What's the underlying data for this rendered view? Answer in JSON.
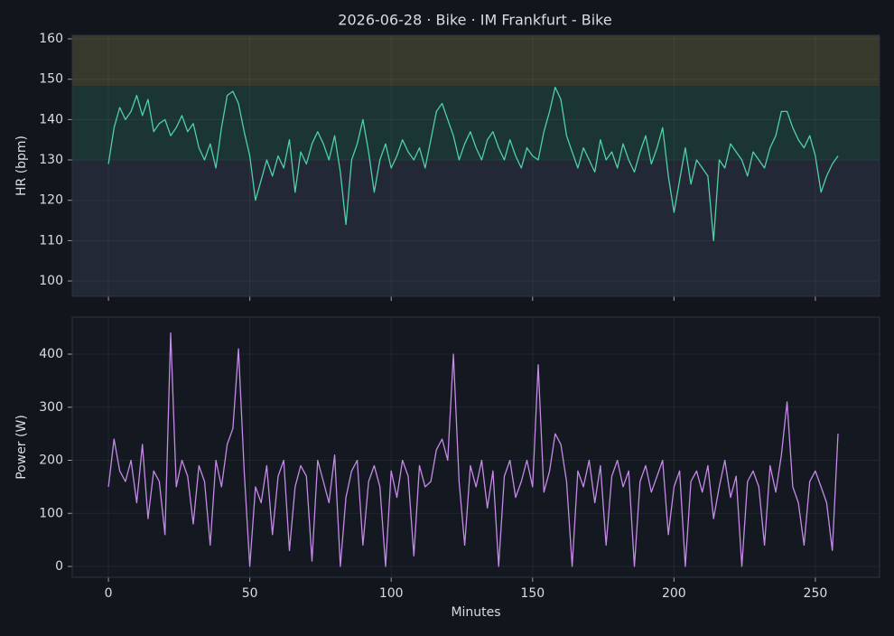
{
  "chart_data": [
    {
      "type": "line",
      "title": "2026-06-28 · Bike · IM Frankfurt - Bike",
      "y_label": "HR (bpm)",
      "color": "#4fd1a5",
      "grid": true,
      "xlim": [
        -12.8,
        272.7
      ],
      "xticks": [
        0,
        50,
        100,
        150,
        200,
        250
      ],
      "ylim": [
        96.2,
        160.9
      ],
      "yticks": [
        100,
        110,
        120,
        130,
        140,
        150,
        160
      ],
      "zones": [
        {
          "from": 148.3,
          "to": 160.9,
          "color": "#37392c"
        },
        {
          "from": 130,
          "to": 148.3,
          "color": "#1b3434"
        },
        {
          "from": 96.2,
          "to": 130,
          "color": "#232836"
        }
      ],
      "x": [
        0,
        2,
        4,
        6,
        8,
        10,
        12,
        14,
        16,
        18,
        20,
        22,
        24,
        26,
        28,
        30,
        32,
        34,
        36,
        38,
        40,
        42,
        44,
        46,
        48,
        50,
        52,
        54,
        56,
        58,
        60,
        62,
        64,
        66,
        68,
        70,
        72,
        74,
        76,
        78,
        80,
        82,
        84,
        86,
        88,
        90,
        92,
        94,
        96,
        98,
        100,
        102,
        104,
        106,
        108,
        110,
        112,
        114,
        116,
        118,
        120,
        122,
        124,
        126,
        128,
        130,
        132,
        134,
        136,
        138,
        140,
        142,
        144,
        146,
        148,
        150,
        152,
        154,
        156,
        158,
        160,
        162,
        164,
        166,
        168,
        170,
        172,
        174,
        176,
        178,
        180,
        182,
        184,
        186,
        188,
        190,
        192,
        194,
        196,
        198,
        200,
        202,
        204,
        206,
        208,
        210,
        212,
        214,
        216,
        218,
        220,
        222,
        224,
        226,
        228,
        230,
        232,
        234,
        236,
        238,
        240,
        242,
        244,
        246,
        248,
        250,
        252,
        254,
        256,
        258
      ],
      "values": [
        129,
        138,
        143,
        140,
        142,
        146,
        141,
        145,
        137,
        139,
        140,
        136,
        138,
        141,
        137,
        139,
        133,
        130,
        134,
        128,
        138,
        146,
        147,
        144,
        137,
        131,
        120,
        125,
        130,
        126,
        131,
        128,
        135,
        122,
        132,
        129,
        134,
        137,
        134,
        130,
        136,
        127,
        114,
        130,
        134,
        140,
        132,
        122,
        130,
        134,
        128,
        131,
        135,
        132,
        130,
        133,
        128,
        135,
        142,
        144,
        140,
        136,
        130,
        134,
        137,
        133,
        130,
        135,
        137,
        133,
        130,
        135,
        131,
        128,
        133,
        131,
        130,
        137,
        142,
        148,
        145,
        136,
        132,
        128,
        133,
        130,
        127,
        135,
        130,
        132,
        128,
        134,
        130,
        127,
        132,
        136,
        129,
        133,
        138,
        126,
        117,
        125,
        133,
        124,
        130,
        128,
        126,
        110,
        130,
        128,
        134,
        132,
        130,
        126,
        132,
        130,
        128,
        133,
        136,
        142,
        142,
        138,
        135,
        133,
        136,
        131,
        122,
        126,
        129,
        131
      ]
    },
    {
      "type": "line",
      "x_label": "Minutes",
      "y_label": "Power (W)",
      "color": "#c58ae8",
      "grid": true,
      "xlim": [
        -12.8,
        272.7
      ],
      "xticks": [
        0,
        50,
        100,
        150,
        200,
        250
      ],
      "ylim": [
        -20.4,
        469.8
      ],
      "yticks": [
        0,
        100,
        200,
        300,
        400
      ],
      "x": [
        0,
        2,
        4,
        6,
        8,
        10,
        12,
        14,
        16,
        18,
        20,
        22,
        24,
        26,
        28,
        30,
        32,
        34,
        36,
        38,
        40,
        42,
        44,
        46,
        48,
        50,
        52,
        54,
        56,
        58,
        60,
        62,
        64,
        66,
        68,
        70,
        72,
        74,
        76,
        78,
        80,
        82,
        84,
        86,
        88,
        90,
        92,
        94,
        96,
        98,
        100,
        102,
        104,
        106,
        108,
        110,
        112,
        114,
        116,
        118,
        120,
        122,
        124,
        126,
        128,
        130,
        132,
        134,
        136,
        138,
        140,
        142,
        144,
        146,
        148,
        150,
        152,
        154,
        156,
        158,
        160,
        162,
        164,
        166,
        168,
        170,
        172,
        174,
        176,
        178,
        180,
        182,
        184,
        186,
        188,
        190,
        192,
        194,
        196,
        198,
        200,
        202,
        204,
        206,
        208,
        210,
        212,
        214,
        216,
        218,
        220,
        222,
        224,
        226,
        228,
        230,
        232,
        234,
        236,
        238,
        240,
        242,
        244,
        246,
        248,
        250,
        252,
        254,
        256,
        258
      ],
      "values": [
        150,
        240,
        180,
        160,
        200,
        120,
        230,
        90,
        180,
        160,
        60,
        440,
        150,
        200,
        170,
        80,
        190,
        160,
        40,
        200,
        150,
        230,
        260,
        410,
        180,
        0,
        150,
        120,
        190,
        60,
        170,
        200,
        30,
        150,
        190,
        170,
        10,
        200,
        160,
        120,
        210,
        0,
        130,
        180,
        200,
        40,
        160,
        190,
        150,
        0,
        180,
        130,
        200,
        170,
        20,
        190,
        150,
        160,
        220,
        240,
        200,
        400,
        160,
        40,
        190,
        150,
        200,
        110,
        180,
        0,
        170,
        200,
        130,
        160,
        200,
        150,
        380,
        140,
        180,
        250,
        230,
        160,
        0,
        180,
        150,
        200,
        120,
        190,
        40,
        170,
        200,
        150,
        180,
        0,
        160,
        190,
        140,
        170,
        200,
        60,
        150,
        180,
        0,
        160,
        180,
        140,
        190,
        90,
        150,
        200,
        130,
        170,
        0,
        160,
        180,
        150,
        40,
        190,
        140,
        210,
        310,
        150,
        120,
        40,
        160,
        180,
        150,
        120,
        30,
        250
      ]
    }
  ]
}
